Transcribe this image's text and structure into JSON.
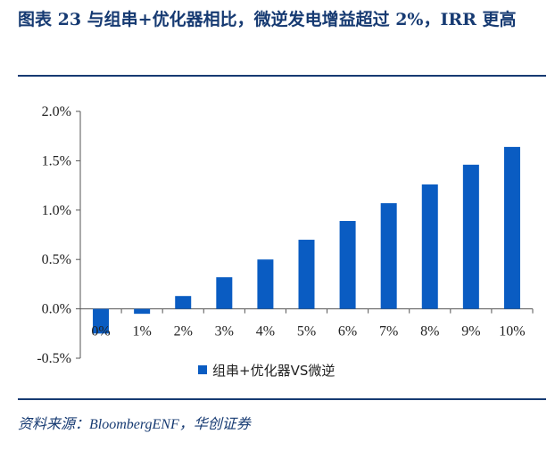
{
  "caption": "图表 23 与组串+优化器相比，微逆发电增益超过 2%，IRR 更高",
  "source": "资料来源：BloombergENF，华创证券",
  "colors": {
    "bar": "#0a5cc2",
    "title": "#163a72",
    "axis": "#555555"
  },
  "chart_data": {
    "type": "bar",
    "categories": [
      "0%",
      "1%",
      "2%",
      "3%",
      "4%",
      "5%",
      "6%",
      "7%",
      "8%",
      "9%",
      "10%"
    ],
    "series": [
      {
        "name": "组串+优化器VS微逆",
        "values": [
          -0.25,
          -0.05,
          0.13,
          0.32,
          0.5,
          0.7,
          0.89,
          1.07,
          1.26,
          1.46,
          1.64
        ]
      }
    ],
    "yticks": [
      "-0.5%",
      "0.0%",
      "0.5%",
      "1.0%",
      "1.5%",
      "2.0%"
    ],
    "ylim": [
      -0.5,
      2.0
    ],
    "xlabel": "",
    "ylabel": "",
    "grid": false,
    "legend": "bottom"
  }
}
